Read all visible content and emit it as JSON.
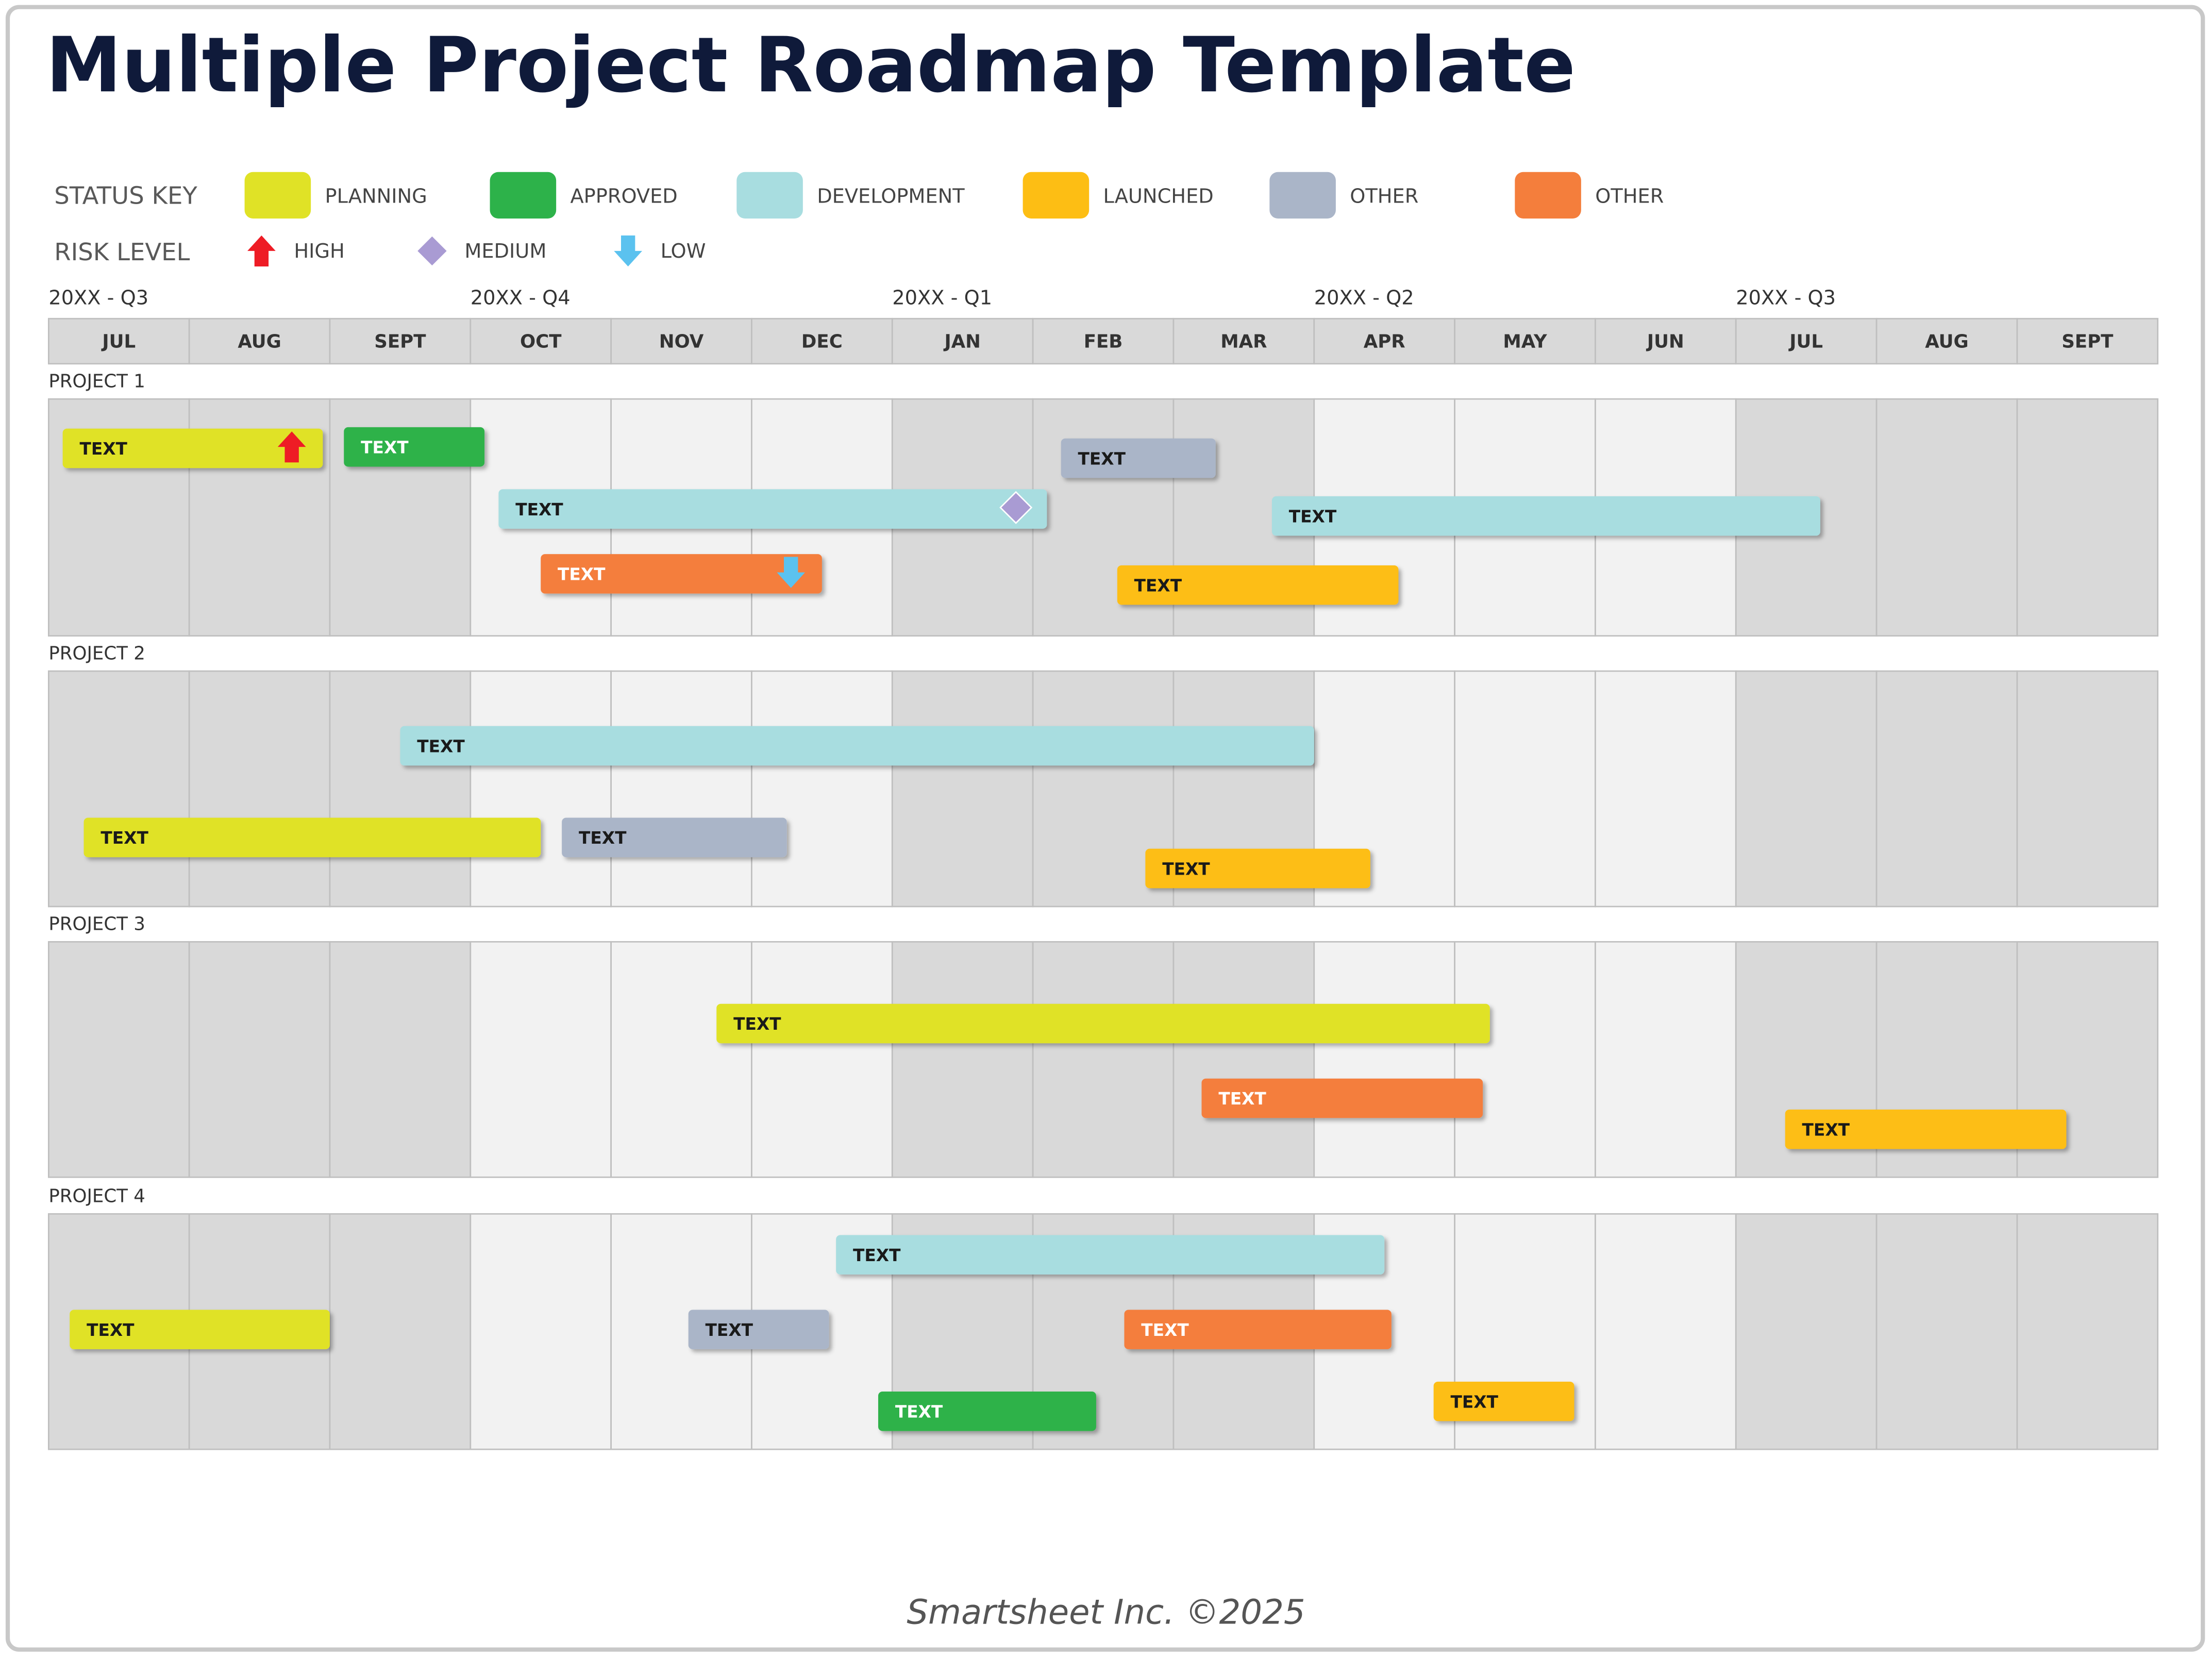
{
  "header": {
    "title": "Multiple Project Roadmap Template"
  },
  "status_key": {
    "label": "STATUS KEY",
    "statuses": [
      {
        "name": "PLANNING",
        "color": "#e0e226",
        "text_color": "#1a1a1a"
      },
      {
        "name": "APPROVED",
        "color": "#2db24a",
        "text_color": "#ffffff"
      },
      {
        "name": "DEVELOPMENT",
        "color": "#a8dde0",
        "text_color": "#1a1a1a"
      },
      {
        "name": "LAUNCHED",
        "color": "#fdbe14",
        "text_color": "#1a1a1a"
      },
      {
        "name": "OTHER",
        "color": "#aab5c8",
        "text_color": "#1a1a1a"
      },
      {
        "name": "OTHER",
        "color": "#f47e3c",
        "text_color": "#ffffff"
      }
    ]
  },
  "risk_key": {
    "label": "RISK LEVEL",
    "levels": [
      {
        "name": "HIGH",
        "color": "#ee1c25"
      },
      {
        "name": "MEDIUM",
        "color": "#a99bd3"
      },
      {
        "name": "LOW",
        "color": "#5bc2ef"
      }
    ]
  },
  "timeline": {
    "quarters": [
      "20XX - Q3",
      "20XX - Q4",
      "20XX - Q1",
      "20XX - Q2",
      "20XX - Q3"
    ],
    "months": [
      "JUL",
      "AUG",
      "SEPT",
      "OCT",
      "NOV",
      "DEC",
      "JAN",
      "FEB",
      "MAR",
      "APR",
      "MAY",
      "JUN",
      "JUL",
      "AUG",
      "SEPT"
    ]
  },
  "projects": [
    {
      "label": "PROJECT 1",
      "tasks": [
        {
          "label": "TEXT",
          "status": 0,
          "start": 0.1,
          "end": 1.95,
          "risk": 0
        },
        {
          "label": "TEXT",
          "status": 1,
          "start": 2.1,
          "end": 3.1
        },
        {
          "label": "TEXT",
          "status": 4,
          "start": 7.2,
          "end": 8.3
        },
        {
          "label": "TEXT",
          "status": 2,
          "start": 3.2,
          "end": 7.1,
          "risk": 1
        },
        {
          "label": "TEXT",
          "status": 2,
          "start": 8.7,
          "end": 12.6
        },
        {
          "label": "TEXT",
          "status": 5,
          "start": 3.5,
          "end": 5.5,
          "risk": 2
        },
        {
          "label": "TEXT",
          "status": 3,
          "start": 7.6,
          "end": 9.6
        }
      ]
    },
    {
      "label": "PROJECT 2",
      "tasks": [
        {
          "label": "TEXT",
          "status": 2,
          "start": 2.5,
          "end": 9.0
        },
        {
          "label": "TEXT",
          "status": 0,
          "start": 0.25,
          "end": 3.5
        },
        {
          "label": "TEXT",
          "status": 4,
          "start": 3.65,
          "end": 5.25
        },
        {
          "label": "TEXT",
          "status": 3,
          "start": 7.8,
          "end": 9.4
        }
      ]
    },
    {
      "label": "PROJECT 3",
      "tasks": [
        {
          "label": "TEXT",
          "status": 0,
          "start": 4.75,
          "end": 10.25
        },
        {
          "label": "TEXT",
          "status": 5,
          "start": 8.2,
          "end": 10.2
        },
        {
          "label": "TEXT",
          "status": 3,
          "start": 12.35,
          "end": 14.35
        }
      ]
    },
    {
      "label": "PROJECT 4",
      "tasks": [
        {
          "label": "TEXT",
          "status": 2,
          "start": 5.6,
          "end": 9.5
        },
        {
          "label": "TEXT",
          "status": 0,
          "start": 0.15,
          "end": 2.0
        },
        {
          "label": "TEXT",
          "status": 4,
          "start": 4.55,
          "end": 5.55
        },
        {
          "label": "TEXT",
          "status": 5,
          "start": 7.65,
          "end": 9.55
        },
        {
          "label": "TEXT",
          "status": 1,
          "start": 5.9,
          "end": 7.45
        },
        {
          "label": "TEXT",
          "status": 3,
          "start": 9.85,
          "end": 10.85
        }
      ]
    }
  ],
  "footer": {
    "text": "Smartsheet Inc. ©2025"
  }
}
